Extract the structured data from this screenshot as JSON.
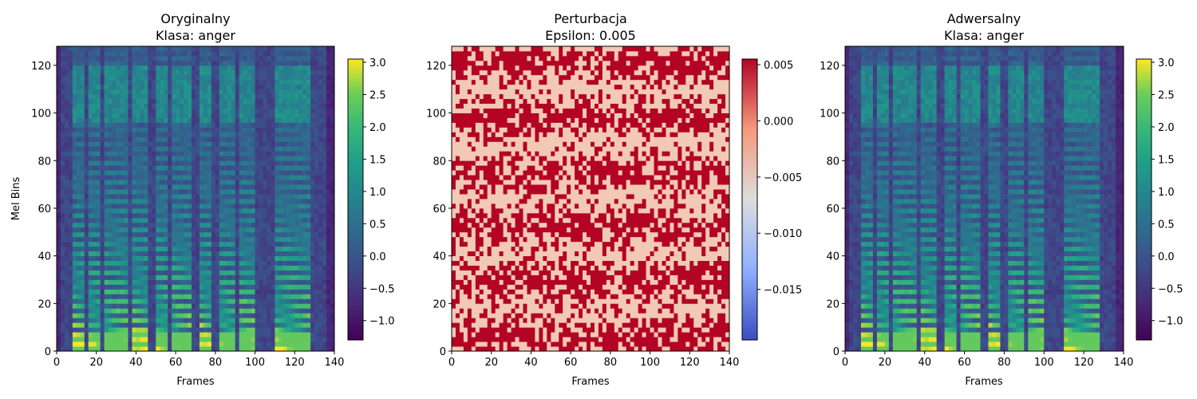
{
  "chart_data": [
    {
      "type": "heatmap",
      "title_line1": "Oryginalny",
      "title_line2": "Klasa: anger",
      "xlabel": "Frames",
      "ylabel": "Mel Bins",
      "xlim": [
        0,
        140
      ],
      "ylim": [
        0,
        128
      ],
      "xticks": [
        0,
        20,
        40,
        60,
        80,
        100,
        120,
        140
      ],
      "yticks": [
        0,
        20,
        40,
        60,
        80,
        100,
        120
      ],
      "colormap": "viridis",
      "colorbar": {
        "range": [
          -1.3,
          3.05
        ],
        "ticks": [
          -1.0,
          -0.5,
          0.0,
          0.5,
          1.0,
          1.5,
          2.0,
          2.5,
          3.0
        ],
        "tick_labels": [
          "−1.0",
          "−0.5",
          "0.0",
          "0.5",
          "1.0",
          "1.5",
          "2.0",
          "2.5",
          "3.0"
        ]
      },
      "grid": false
    },
    {
      "type": "heatmap",
      "title_line1": "Perturbacja",
      "title_line2": "Epsilon: 0.005",
      "xlabel": "Frames",
      "ylabel": "",
      "xlim": [
        0,
        140
      ],
      "ylim": [
        0,
        128
      ],
      "xticks": [
        0,
        20,
        40,
        60,
        80,
        100,
        120,
        140
      ],
      "yticks": [
        0,
        20,
        40,
        60,
        80,
        100,
        120
      ],
      "colormap": "coolwarm",
      "values_present": [
        -0.005,
        0.005
      ],
      "colorbar": {
        "range": [
          -0.0195,
          0.0055
        ],
        "ticks": [
          -0.015,
          -0.01,
          -0.005,
          0.0,
          0.005
        ],
        "tick_labels": [
          "−0.015",
          "−0.010",
          "−0.005",
          "0.000",
          "0.005"
        ]
      },
      "grid": false
    },
    {
      "type": "heatmap",
      "title_line1": "Adwersalny",
      "title_line2": "Klasa: anger",
      "xlabel": "Frames",
      "ylabel": "",
      "xlim": [
        0,
        140
      ],
      "ylim": [
        0,
        128
      ],
      "xticks": [
        0,
        20,
        40,
        60,
        80,
        100,
        120,
        140
      ],
      "yticks": [
        0,
        20,
        40,
        60,
        80,
        100,
        120
      ],
      "colormap": "viridis",
      "colorbar": {
        "range": [
          -1.3,
          3.05
        ],
        "ticks": [
          -1.0,
          -0.5,
          0.0,
          0.5,
          1.0,
          1.5,
          2.0,
          2.5,
          3.0
        ],
        "tick_labels": [
          "−1.0",
          "−0.5",
          "0.0",
          "0.5",
          "1.0",
          "1.5",
          "2.0",
          "2.5",
          "3.0"
        ]
      },
      "grid": false
    }
  ]
}
